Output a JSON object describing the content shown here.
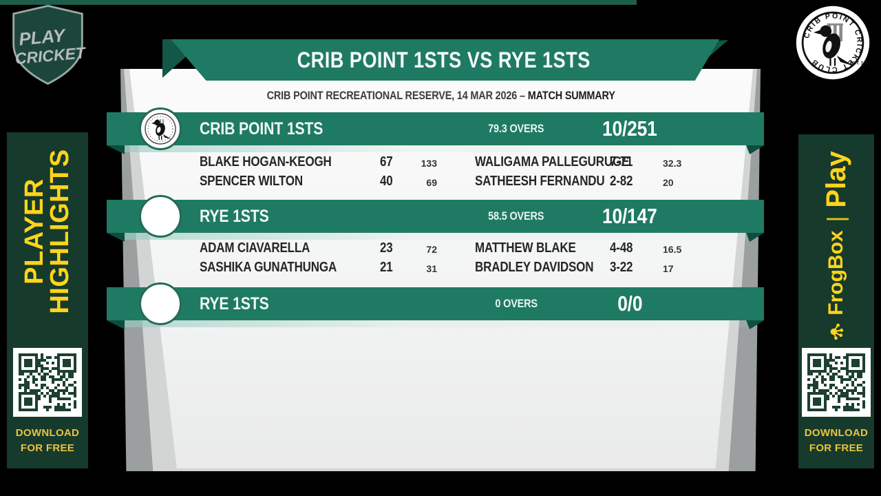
{
  "header": {
    "title": "CRIB POINT 1STS VS RYE 1STS",
    "venue_date": "CRIB POINT RECREATIONAL RESERVE, 14 MAR 2026",
    "separator": "–",
    "summary_label": "MATCH SUMMARY"
  },
  "innings": [
    {
      "team": "CRIB POINT 1STS",
      "overs": "79.3 OVERS",
      "score": "10/251",
      "batting": [
        {
          "name": "BLAKE HOGAN-KEOGH",
          "runs": "67",
          "balls": "133"
        },
        {
          "name": "SPENCER WILTON",
          "runs": "40",
          "balls": "69"
        }
      ],
      "bowling": [
        {
          "name": "WALIGAMA PALLEGURUGE",
          "figures": "7-71",
          "overs": "32.3"
        },
        {
          "name": "SATHEESH FERNANDU",
          "figures": "2-82",
          "overs": "20"
        }
      ]
    },
    {
      "team": "RYE 1STS",
      "overs": "58.5 OVERS",
      "score": "10/147",
      "batting": [
        {
          "name": "ADAM CIAVARELLA",
          "runs": "23",
          "balls": "72"
        },
        {
          "name": "SASHIKA GUNATHUNGA",
          "runs": "21",
          "balls": "31"
        }
      ],
      "bowling": [
        {
          "name": "MATTHEW BLAKE",
          "figures": "4-48",
          "overs": "16.5"
        },
        {
          "name": "BRADLEY DAVIDSON",
          "figures": "3-22",
          "overs": "17"
        }
      ]
    },
    {
      "team": "RYE 1STS",
      "overs": "0 OVERS",
      "score": "0/0",
      "batting": [],
      "bowling": []
    }
  ],
  "branding": {
    "play_cricket": {
      "line1": "PLAY",
      "line2": "CRICKET"
    },
    "club_crest": {
      "circle_text": "CRIB POINT CRICKET CLUB",
      "est": "EST. 1892"
    }
  },
  "rail_left": {
    "vertical_line1": "PLAYER",
    "vertical_line2": "HIGHLIGHTS",
    "download_line1": "DOWNLOAD",
    "download_line2": "FOR FREE"
  },
  "rail_right": {
    "brand": "FrogBox",
    "divider": "|",
    "product": "Play",
    "download_line1": "DOWNLOAD",
    "download_line2": "FOR FREE"
  },
  "colors": {
    "bar_green": "#1f7a63",
    "dark_green": "#0d4e3f",
    "rail_green": "#163a2c",
    "accent_yellow": "#ffd41c",
    "card_light": "#f7f8f8",
    "bottom_strip_green": "#1c5e4a"
  }
}
